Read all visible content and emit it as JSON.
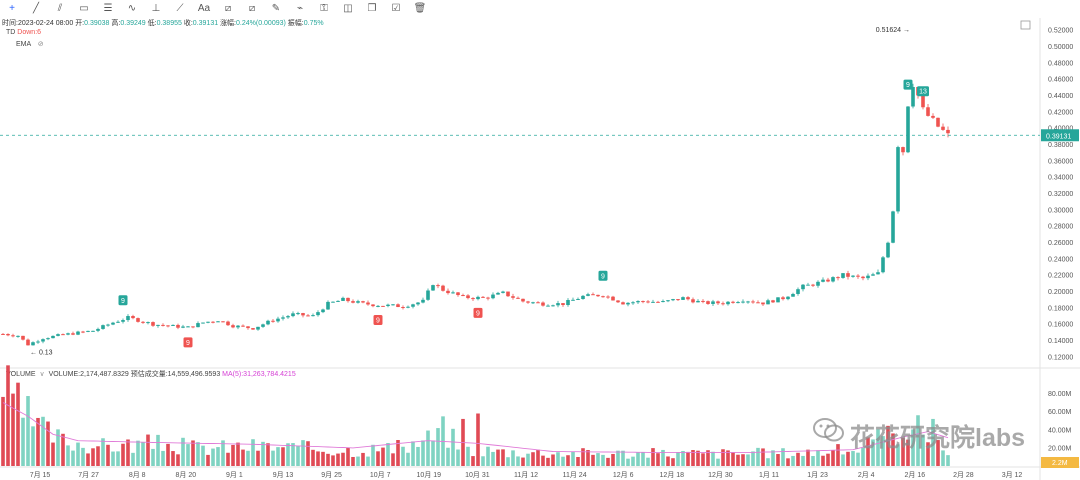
{
  "toolbar": {
    "icons": [
      "crosshair-icon",
      "trend-line-icon",
      "parallel-channel-icon",
      "rectangle-icon",
      "fib-icon",
      "wave-icon",
      "measure-icon",
      "brush-icon",
      "text-icon",
      "pattern-icon",
      "prediction-icon",
      "ruler-icon",
      "magnet-icon",
      "lock-icon",
      "eye-icon",
      "clone-icon",
      "checklist-icon",
      "trash-icon"
    ],
    "text_label": "Aa"
  },
  "header": {
    "time_label": "时间:",
    "time_value": "2023-02-24 08:00",
    "open_label": "开:",
    "open_value": "0.39038",
    "high_label": "高:",
    "high_value": "0.39249",
    "low_label": "低:",
    "low_value": "0.38955",
    "close_label": "收:",
    "close_value": "0.39131",
    "change_label": "涨幅:",
    "change_value": "0.24%(0.00093)",
    "amp_label": "振幅:",
    "amp_value": "0.75%",
    "td_label": "TD",
    "td_value": "Down:6",
    "ema_label": "EMA"
  },
  "volume_header": {
    "label": "VOLUME",
    "volume": "VOLUME:2,174,487.8329",
    "est_label": "预估成交量:14,559,496.9593",
    "ma_label": "MA(5):31,263,784.4215"
  },
  "watermark": "花花研究院labs",
  "colors": {
    "up": "#26a69a",
    "down": "#ef5350",
    "up_volume": "#7fd3c2",
    "down_volume": "#e04a55",
    "price_line": "#26a69a",
    "ma_line": "#e07bd8",
    "vol_current": "#f4b942"
  },
  "chart_data": [
    {
      "type": "candlestick",
      "y_ticks": [
        "0.52000",
        "0.50000",
        "0.48000",
        "0.46000",
        "0.44000",
        "0.42000",
        "0.40000",
        "0.38000",
        "0.36000",
        "0.34000",
        "0.32000",
        "0.30000",
        "0.28000",
        "0.26000",
        "0.24000",
        "0.22000",
        "0.20000",
        "0.18000",
        "0.16000",
        "0.14000",
        "0.12000"
      ],
      "ylim": [
        0.11,
        0.53
      ],
      "x_ticks": [
        "7月 15",
        "7月 27",
        "8月 8",
        "8月 20",
        "9月 1",
        "9月 13",
        "9月 25",
        "10月 7",
        "10月 19",
        "10月 31",
        "11月 12",
        "11月 24",
        "12月 6",
        "12月 18",
        "12月 30",
        "1月 11",
        "1月 23",
        "2月 4",
        "2月 16",
        "2月 28",
        "3月 12"
      ],
      "current_price": 0.39131,
      "current_price_label": "0.39131",
      "high_annotation": {
        "label": "0.51624",
        "value": 0.51624
      },
      "low_annotation": {
        "label": "0.13",
        "value": 0.13
      },
      "td_markers": [
        {
          "label": "9",
          "index": 24,
          "side": "up"
        },
        {
          "label": "9",
          "index": 37,
          "side": "down"
        },
        {
          "label": "9",
          "index": 75,
          "side": "down"
        },
        {
          "label": "9",
          "index": 95,
          "side": "down"
        },
        {
          "label": "9",
          "index": 120,
          "side": "up"
        },
        {
          "label": "9",
          "index": 181,
          "side": "up"
        },
        {
          "label": "13",
          "index": 184,
          "side": "up"
        }
      ],
      "anchors": [
        [
          0,
          0.148
        ],
        [
          3,
          0.146
        ],
        [
          5,
          0.135
        ],
        [
          8,
          0.143
        ],
        [
          12,
          0.147
        ],
        [
          18,
          0.152
        ],
        [
          22,
          0.162
        ],
        [
          25,
          0.168
        ],
        [
          30,
          0.16
        ],
        [
          33,
          0.158
        ],
        [
          37,
          0.156
        ],
        [
          40,
          0.162
        ],
        [
          43,
          0.165
        ],
        [
          46,
          0.158
        ],
        [
          50,
          0.155
        ],
        [
          54,
          0.165
        ],
        [
          58,
          0.172
        ],
        [
          62,
          0.17
        ],
        [
          65,
          0.185
        ],
        [
          68,
          0.19
        ],
        [
          72,
          0.185
        ],
        [
          76,
          0.183
        ],
        [
          80,
          0.182
        ],
        [
          84,
          0.188
        ],
        [
          86,
          0.21
        ],
        [
          88,
          0.202
        ],
        [
          92,
          0.193
        ],
        [
          96,
          0.192
        ],
        [
          100,
          0.198
        ],
        [
          104,
          0.188
        ],
        [
          108,
          0.185
        ],
        [
          112,
          0.185
        ],
        [
          116,
          0.194
        ],
        [
          120,
          0.196
        ],
        [
          124,
          0.186
        ],
        [
          128,
          0.188
        ],
        [
          132,
          0.187
        ],
        [
          136,
          0.192
        ],
        [
          140,
          0.186
        ],
        [
          144,
          0.186
        ],
        [
          148,
          0.19
        ],
        [
          152,
          0.186
        ],
        [
          156,
          0.192
        ],
        [
          160,
          0.206
        ],
        [
          164,
          0.212
        ],
        [
          168,
          0.22
        ],
        [
          172,
          0.216
        ],
        [
          175,
          0.222
        ],
        [
          177,
          0.262
        ],
        [
          178,
          0.3
        ],
        [
          179,
          0.38
        ],
        [
          180,
          0.372
        ],
        [
          181,
          0.43
        ],
        [
          182,
          0.455
        ],
        [
          183,
          0.44
        ],
        [
          184,
          0.422
        ],
        [
          185,
          0.415
        ],
        [
          187,
          0.402
        ],
        [
          189,
          0.391
        ]
      ]
    },
    {
      "type": "bar",
      "name_label": "VOLUME",
      "y_ticks": [
        "80.00M",
        "60.00M",
        "40.00M",
        "20.00M"
      ],
      "ylim": [
        0,
        95
      ],
      "current_volume_label": "2.2M",
      "unit": "M",
      "profile": [
        [
          0,
          90
        ],
        [
          2,
          70
        ],
        [
          5,
          55
        ],
        [
          8,
          40
        ],
        [
          12,
          28
        ],
        [
          20,
          22
        ],
        [
          30,
          25
        ],
        [
          40,
          20
        ],
        [
          50,
          22
        ],
        [
          60,
          20
        ],
        [
          70,
          18
        ],
        [
          80,
          20
        ],
        [
          85,
          30
        ],
        [
          88,
          40
        ],
        [
          92,
          20
        ],
        [
          96,
          18
        ],
        [
          100,
          16
        ],
        [
          110,
          15
        ],
        [
          120,
          14
        ],
        [
          130,
          14
        ],
        [
          140,
          14
        ],
        [
          150,
          14
        ],
        [
          160,
          15
        ],
        [
          170,
          18
        ],
        [
          176,
          30
        ],
        [
          180,
          45
        ],
        [
          184,
          40
        ],
        [
          187,
          30
        ],
        [
          189,
          2.2
        ]
      ],
      "spikes": [
        [
          92,
          52
        ],
        [
          95,
          58
        ],
        [
          186,
          52
        ]
      ],
      "ma_profile": [
        [
          0,
          70
        ],
        [
          5,
          55
        ],
        [
          10,
          35
        ],
        [
          15,
          28
        ],
        [
          30,
          26
        ],
        [
          50,
          24
        ],
        [
          60,
          22
        ],
        [
          70,
          20
        ],
        [
          85,
          28
        ],
        [
          95,
          25
        ],
        [
          110,
          16
        ],
        [
          130,
          15
        ],
        [
          150,
          15
        ],
        [
          170,
          18
        ],
        [
          180,
          32
        ],
        [
          185,
          38
        ],
        [
          189,
          31.26
        ]
      ]
    }
  ]
}
